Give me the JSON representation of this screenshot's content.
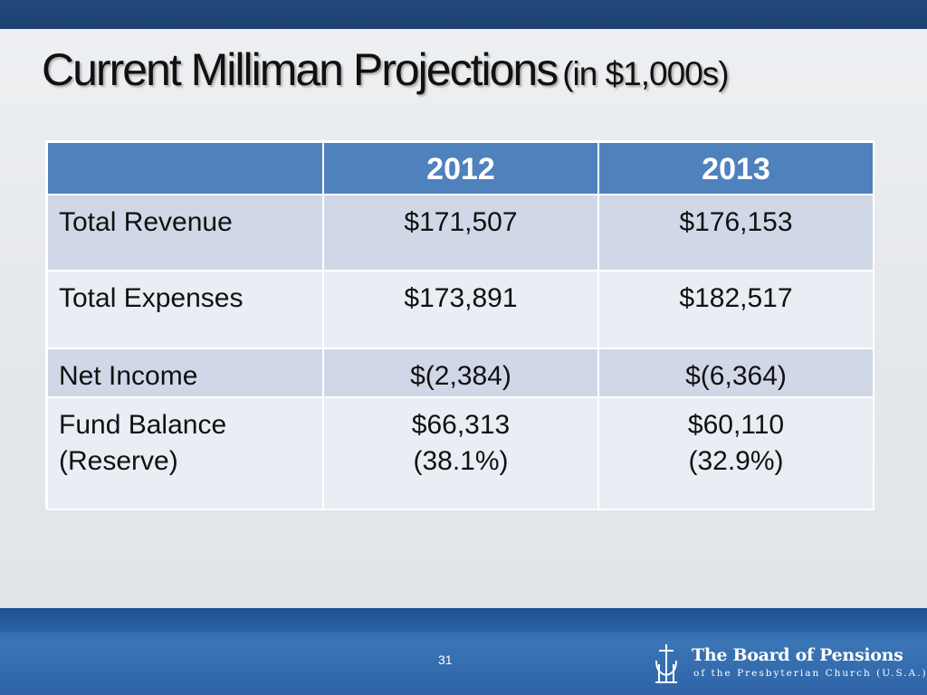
{
  "slide": {
    "title_main": "Current Milliman Projections",
    "title_sub": "(in $1,000s)",
    "page_number": "31"
  },
  "table": {
    "header": [
      "",
      "2012",
      "2013"
    ],
    "rows": [
      {
        "label": [
          "Total Revenue"
        ],
        "y2012": [
          "$171,507"
        ],
        "y2013": [
          "$176,153"
        ]
      },
      {
        "label": [
          "Total Expenses"
        ],
        "y2012": [
          "$173,891"
        ],
        "y2013": [
          "$182,517"
        ]
      },
      {
        "label": [
          "Net Income"
        ],
        "y2012": [
          "$(2,384)"
        ],
        "y2013": [
          "$(6,364)"
        ]
      },
      {
        "label": [
          "Fund Balance",
          "(Reserve)"
        ],
        "y2012": [
          "$66,313",
          "(38.1%)"
        ],
        "y2013": [
          "$60,110",
          "(32.9%)"
        ]
      }
    ]
  },
  "logo": {
    "name": "The Board of Pensions",
    "tagline": "of the Presbyterian Church (U.S.A.)",
    "icon": "presbyterian-seal-icon"
  },
  "colors": {
    "top_bar": "#1f4274",
    "header_fill": "#4f81bd",
    "row_dark": "#d0d8e8",
    "row_light": "#e9edf4",
    "bottom_band": "#2f64a8"
  }
}
